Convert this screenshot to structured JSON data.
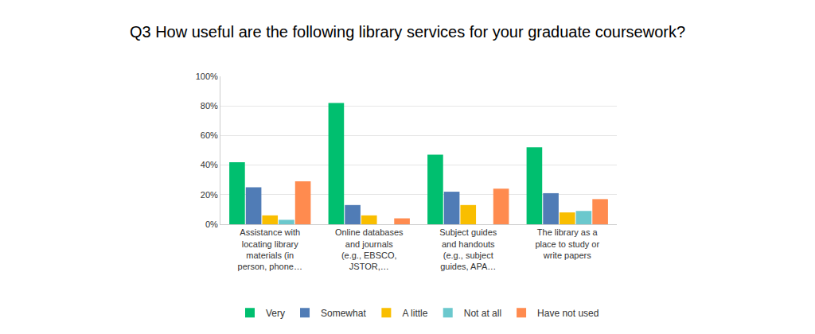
{
  "chart_data": {
    "type": "bar",
    "title": "Q3 How useful are the following library services for your graduate coursework?",
    "categories": [
      "Assistance with locating library materials (in person, phone…",
      "Online databases and journals (e.g., EBSCO, JSTOR,…",
      "Subject guides and handouts (e.g., subject guides, APA…",
      "The library as a place to study or write papers"
    ],
    "series": [
      {
        "name": "Very",
        "color": "#00bf6f",
        "values": [
          42,
          82,
          47,
          52
        ]
      },
      {
        "name": "Somewhat",
        "color": "#507cb6",
        "values": [
          25,
          13,
          22,
          21
        ]
      },
      {
        "name": "A little",
        "color": "#f9be00",
        "values": [
          6,
          6,
          13,
          8
        ]
      },
      {
        "name": "Not at all",
        "color": "#6bc8cd",
        "values": [
          3,
          0,
          0,
          9
        ]
      },
      {
        "name": "Have not used",
        "color": "#ff8b4f",
        "values": [
          29,
          4,
          24,
          17
        ]
      }
    ],
    "ylim": [
      0,
      100
    ],
    "yticks": [
      {
        "value": 0,
        "label": "0%"
      },
      {
        "value": 20,
        "label": "20%"
      },
      {
        "value": 40,
        "label": "40%"
      },
      {
        "value": 60,
        "label": "60%"
      },
      {
        "value": 80,
        "label": "80%"
      },
      {
        "value": 100,
        "label": "100%"
      }
    ],
    "grid": true,
    "legend": "bottom"
  }
}
